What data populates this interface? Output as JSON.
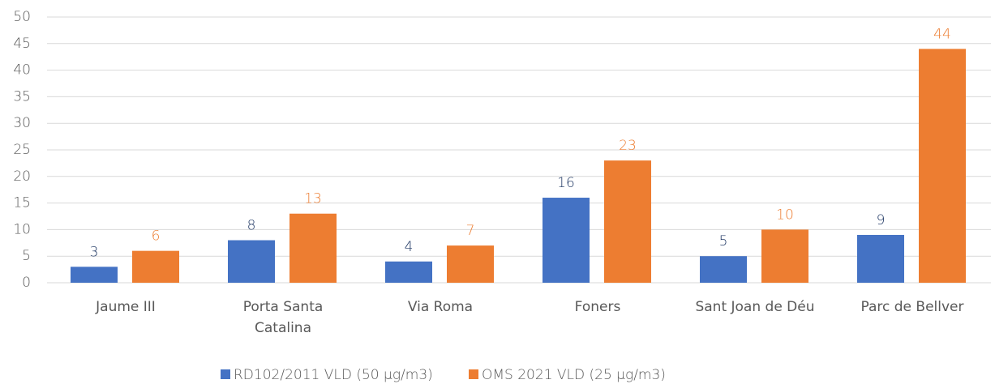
{
  "chart_data": {
    "type": "bar",
    "categories": [
      "Jaume III",
      "Porta Santa Catalina",
      "Via Roma",
      "Foners",
      "Sant Joan de Déu",
      "Parc de Bellver"
    ],
    "series": [
      {
        "name": "RD102/2011 VLD (50 µg/m3)",
        "color": "#4472c4",
        "label_color": "#203864",
        "values": [
          3,
          8,
          4,
          16,
          5,
          9
        ]
      },
      {
        "name": "OMS 2021 VLD (25 µg/m3)",
        "color": "#ed7d31",
        "label_color": "#ed7d31",
        "values": [
          6,
          13,
          7,
          23,
          10,
          44
        ]
      }
    ],
    "ylim": [
      0,
      50
    ],
    "yticks": [
      0,
      5,
      10,
      15,
      20,
      25,
      30,
      35,
      40,
      45,
      50
    ],
    "grid": true,
    "legend": "bottom"
  }
}
